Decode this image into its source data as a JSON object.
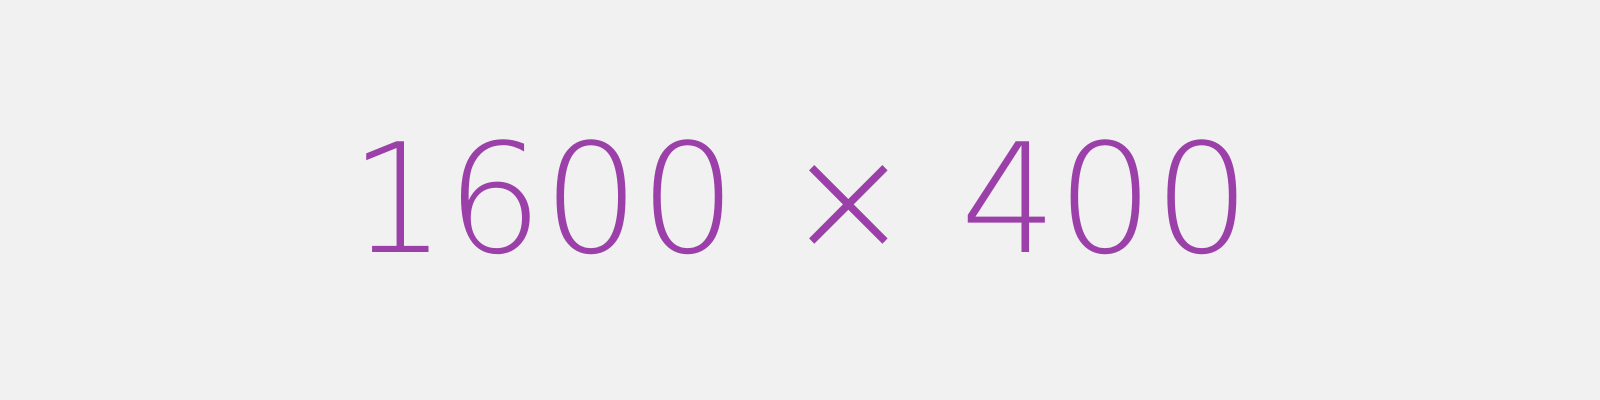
{
  "placeholder": {
    "label": "1600 × 400"
  },
  "colors": {
    "background": "#f1f1f1",
    "text": "#9c40a9"
  }
}
